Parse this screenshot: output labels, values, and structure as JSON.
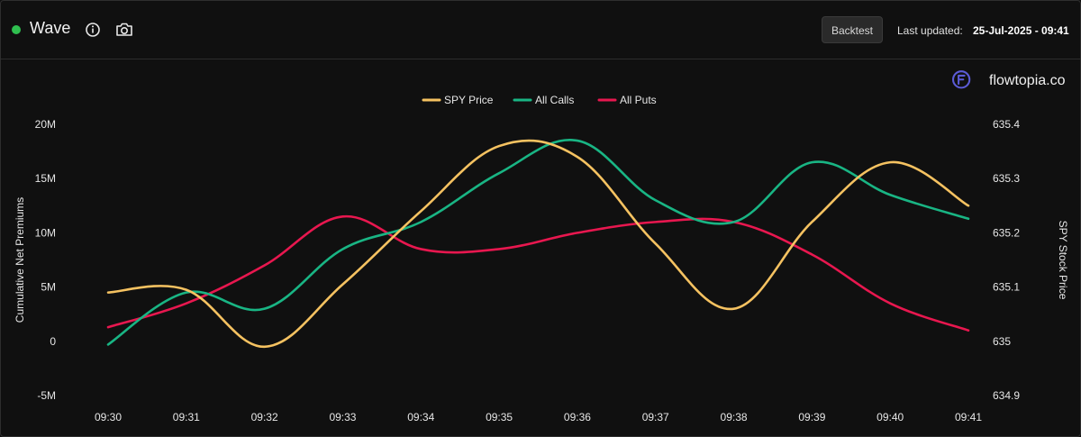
{
  "header": {
    "title": "Wave",
    "live_color": "#2fbf4f",
    "info_icon": "info-icon",
    "camera_icon": "camera-icon",
    "backtest_label": "Backtest",
    "updated_label": "Last updated:",
    "updated_value": "25-Jul-2025 - 09:41"
  },
  "brand": {
    "name": "flowtopia.co",
    "logo_icon": "flowtopia-logo-icon",
    "logo_color": "#5b5bd6"
  },
  "chart_data": {
    "type": "line",
    "x": [
      "09:30",
      "09:31",
      "09:32",
      "09:33",
      "09:34",
      "09:35",
      "09:36",
      "09:37",
      "09:38",
      "09:39",
      "09:40",
      "09:41"
    ],
    "y_left": {
      "label": "Cumulative Net Premiums",
      "ticks": [
        "20M",
        "15M",
        "10M",
        "5M",
        "0",
        "-5M"
      ],
      "tick_values": [
        20,
        15,
        10,
        5,
        0,
        -5
      ],
      "range": [
        -5,
        20
      ]
    },
    "y_right": {
      "label": "SPY Stock Price",
      "ticks": [
        "635.4",
        "635.3",
        "635.2",
        "635.1",
        "635",
        "634.9"
      ],
      "tick_values": [
        635.4,
        635.3,
        635.2,
        635.1,
        635.0,
        634.9
      ],
      "range": [
        634.9,
        635.4
      ]
    },
    "legend_position": "top-center",
    "grid": false,
    "series": [
      {
        "name": "SPY Price",
        "axis": "right",
        "color": "#f5c261",
        "values": [
          635.09,
          635.095,
          634.99,
          635.105,
          635.24,
          635.36,
          635.34,
          635.18,
          635.06,
          635.22,
          635.33,
          635.25
        ]
      },
      {
        "name": "All Calls",
        "axis": "left",
        "color": "#19b584",
        "values": [
          -0.3,
          4.5,
          3.0,
          8.5,
          11.0,
          15.5,
          18.5,
          13.0,
          11.0,
          16.5,
          13.5,
          11.3
        ]
      },
      {
        "name": "All Puts",
        "axis": "left",
        "color": "#e8174f",
        "values": [
          1.3,
          3.5,
          7.0,
          11.5,
          8.5,
          8.5,
          10.0,
          11.0,
          11.0,
          8.0,
          3.5,
          1.0
        ]
      }
    ]
  }
}
